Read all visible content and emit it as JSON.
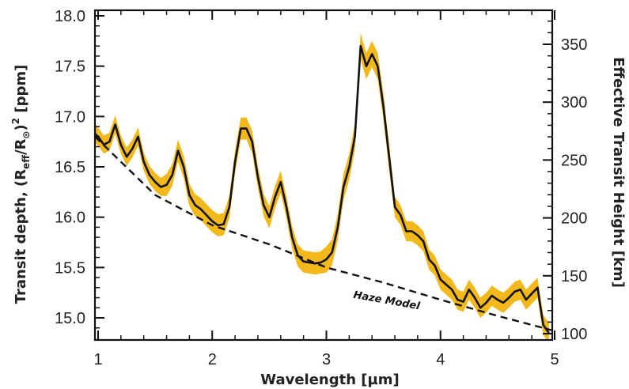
{
  "chart_data": {
    "type": "line",
    "xlabel": "Wavelength [µm]",
    "ylabel_left_parts": {
      "prefix": "Transit depth, (R",
      "sub1": "eff",
      "mid": "/R",
      "sub2": "⊙",
      "close": ")",
      "sup": "2",
      "suffix": " [ppm]"
    },
    "ylabel_right": "Effective Transit Height [km]",
    "xlim": [
      0.9,
      5.0
    ],
    "ylim": [
      14.8,
      18.05
    ],
    "ylim_right": [
      100,
      373
    ],
    "x_ticks": [
      1,
      2,
      3,
      4,
      5
    ],
    "y_ticks": [
      "15.0",
      "15.5",
      "16.0",
      "16.5",
      "17.0",
      "17.5",
      "18.0"
    ],
    "y_ticks_right": [
      "100",
      "150",
      "200",
      "250",
      "300",
      "350"
    ],
    "annotation": "Haze Model",
    "colors": {
      "spectrum": "#111111",
      "uncertainty_band": "#f2b81c",
      "haze_model": "#111111"
    },
    "series": [
      {
        "style": "solid",
        "x": [
          0.9,
          0.95,
          1.0,
          1.05,
          1.1,
          1.15,
          1.2,
          1.25,
          1.3,
          1.35,
          1.4,
          1.45,
          1.5,
          1.55,
          1.6,
          1.65,
          1.7,
          1.75,
          1.8,
          1.85,
          1.9,
          1.95,
          2.0,
          2.05,
          2.1,
          2.15,
          2.2,
          2.25,
          2.3,
          2.35,
          2.4,
          2.45,
          2.5,
          2.55,
          2.6,
          2.65,
          2.7,
          2.75,
          2.8,
          2.85,
          2.9,
          2.95,
          3.0,
          3.05,
          3.1,
          3.15,
          3.2,
          3.25,
          3.3,
          3.35,
          3.4,
          3.45,
          3.5,
          3.55,
          3.6,
          3.65,
          3.7,
          3.75,
          3.8,
          3.85,
          3.9,
          3.95,
          4.0,
          4.05,
          4.1,
          4.15,
          4.2,
          4.25,
          4.3,
          4.35,
          4.4,
          4.45,
          4.5,
          4.55,
          4.6,
          4.65,
          4.7,
          4.75,
          4.8,
          4.85,
          4.9,
          4.95
        ],
        "y": [
          16.95,
          16.85,
          16.8,
          16.72,
          16.75,
          16.92,
          16.72,
          16.6,
          16.68,
          16.8,
          16.55,
          16.42,
          16.35,
          16.3,
          16.32,
          16.42,
          16.66,
          16.5,
          16.22,
          16.12,
          16.08,
          16.02,
          15.96,
          15.92,
          15.93,
          16.1,
          16.55,
          16.88,
          16.88,
          16.75,
          16.4,
          16.12,
          16.0,
          16.2,
          16.35,
          16.1,
          15.8,
          15.62,
          15.56,
          15.55,
          15.54,
          15.55,
          15.58,
          15.65,
          15.9,
          16.3,
          16.5,
          16.8,
          17.7,
          17.5,
          17.62,
          17.5,
          17.1,
          16.6,
          16.1,
          16.02,
          15.86,
          15.86,
          15.82,
          15.76,
          15.58,
          15.52,
          15.38,
          15.33,
          15.28,
          15.18,
          15.16,
          15.28,
          15.2,
          15.1,
          15.15,
          15.22,
          15.18,
          15.15,
          15.2,
          15.26,
          15.28,
          15.18,
          15.24,
          15.3,
          14.93,
          14.85
        ]
      },
      {
        "name": "Haze Model",
        "style": "dashed",
        "x": [
          0.9,
          1.5,
          2.0,
          2.5,
          3.0,
          3.5,
          4.0,
          4.5,
          5.0
        ],
        "y": [
          16.88,
          16.22,
          15.92,
          15.73,
          15.5,
          15.35,
          15.18,
          15.02,
          14.87
        ]
      }
    ]
  }
}
